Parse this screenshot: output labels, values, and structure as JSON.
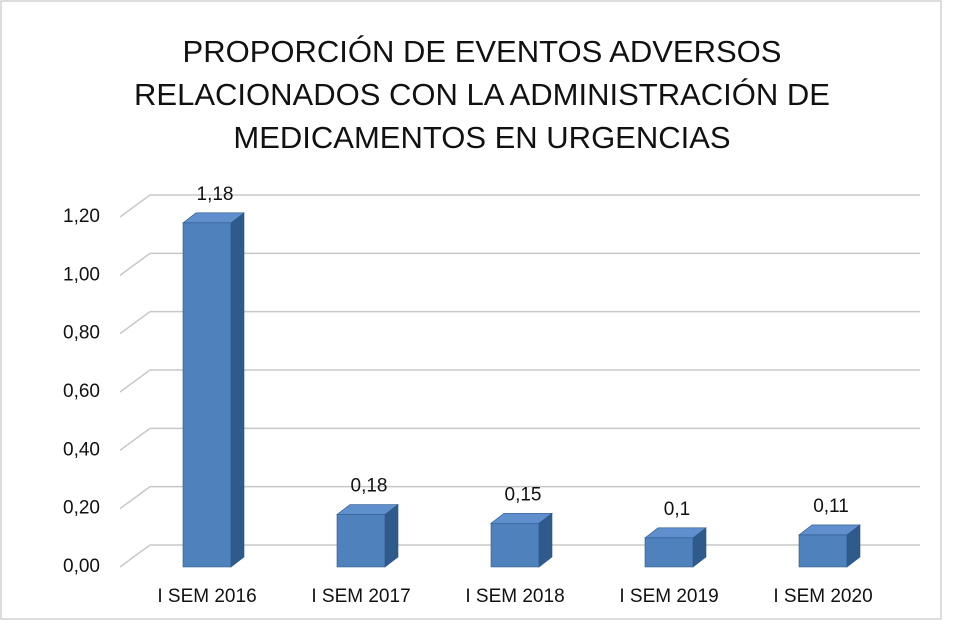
{
  "chart_data": {
    "type": "bar3d",
    "title": "PROPORCIÓN DE EVENTOS ADVERSOS RELACIONADOS CON LA ADMINISTRACIÓN DE MEDICAMENTOS EN URGENCIAS",
    "categories": [
      "I SEM 2016",
      "I SEM 2017",
      "I SEM 2018",
      "I SEM 2019",
      "I SEM 2020"
    ],
    "values": [
      1.18,
      0.18,
      0.15,
      0.1,
      0.11
    ],
    "value_labels": [
      "1,18",
      "0,18",
      "0,15",
      "0,1",
      "0,11"
    ],
    "color": "#4f81bd",
    "ylim": [
      0,
      1.2
    ],
    "yticks": [
      {
        "value": 0,
        "label": "0,00"
      },
      {
        "value": 0.2,
        "label": "0,20"
      },
      {
        "value": 0.4,
        "label": "0,40"
      },
      {
        "value": 0.6,
        "label": "0,60"
      },
      {
        "value": 0.8,
        "label": "0,80"
      },
      {
        "value": 1,
        "label": "1,00"
      },
      {
        "value": 1.2,
        "label": "1,20"
      }
    ],
    "grid": true
  }
}
